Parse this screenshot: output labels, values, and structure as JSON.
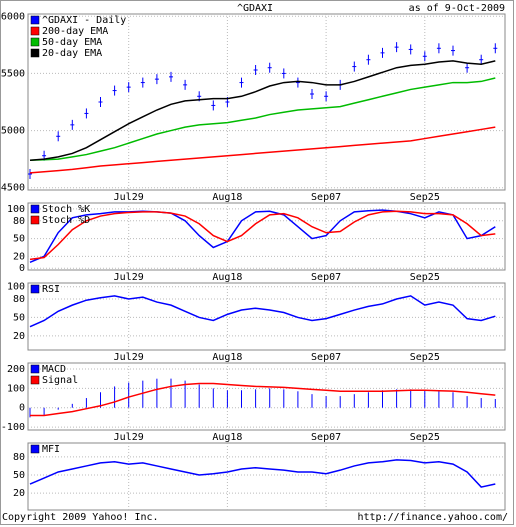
{
  "title": "^GDAXI",
  "as_of": "as of  9-Oct-2009",
  "footer_left": "Copyright 2009 Yahoo! Inc.",
  "footer_right": "http://finance.yahoo.com/",
  "chart_data": [
    {
      "type": "line",
      "categories": [
        null,
        null,
        null,
        null,
        null,
        null,
        null,
        "Jul29",
        null,
        null,
        null,
        null,
        null,
        null,
        "Aug18",
        null,
        null,
        null,
        null,
        null,
        null,
        "Sep07",
        null,
        null,
        null,
        null,
        null,
        null,
        "Sep25",
        null,
        null,
        null,
        null,
        null
      ],
      "ylim": [
        4480,
        6020
      ],
      "yticks": [
        4500,
        5000,
        5500,
        6000
      ],
      "grid": true,
      "series": [
        {
          "name": "^GDAXI - Daily",
          "color": "#0000ff",
          "style": "marker",
          "values": [
            4620,
            4780,
            4950,
            5050,
            5150,
            5250,
            5350,
            5380,
            5420,
            5450,
            5470,
            5400,
            5300,
            5220,
            5250,
            5420,
            5530,
            5550,
            5500,
            5420,
            5320,
            5300,
            5400,
            5560,
            5620,
            5680,
            5730,
            5710,
            5650,
            5720,
            5700,
            5550,
            5620,
            5720
          ]
        },
        {
          "name": "200-day EMA",
          "color": "#ff0000",
          "style": "line",
          "values": [
            4630,
            4640,
            4650,
            4660,
            4675,
            4690,
            4700,
            4710,
            4720,
            4730,
            4740,
            4750,
            4760,
            4770,
            4780,
            4790,
            4800,
            4810,
            4820,
            4830,
            4840,
            4850,
            4860,
            4870,
            4880,
            4890,
            4900,
            4910,
            4930,
            4950,
            4970,
            4990,
            5010,
            5030
          ]
        },
        {
          "name": "50-day EMA",
          "color": "#00bb00",
          "style": "line",
          "values": [
            4740,
            4745,
            4750,
            4770,
            4790,
            4820,
            4850,
            4890,
            4930,
            4970,
            5000,
            5030,
            5050,
            5060,
            5070,
            5090,
            5110,
            5140,
            5160,
            5180,
            5190,
            5200,
            5210,
            5240,
            5270,
            5300,
            5330,
            5360,
            5380,
            5400,
            5420,
            5420,
            5430,
            5460
          ]
        },
        {
          "name": "20-day EMA",
          "color": "#000000",
          "style": "line",
          "values": [
            4740,
            4750,
            4770,
            4800,
            4850,
            4920,
            4990,
            5060,
            5120,
            5180,
            5230,
            5260,
            5270,
            5280,
            5280,
            5300,
            5340,
            5390,
            5420,
            5430,
            5420,
            5400,
            5400,
            5430,
            5470,
            5510,
            5550,
            5570,
            5580,
            5600,
            5610,
            5590,
            5580,
            5610
          ]
        }
      ]
    },
    {
      "type": "line",
      "categories": [
        null,
        null,
        null,
        null,
        null,
        null,
        null,
        "Jul29",
        null,
        null,
        null,
        null,
        null,
        null,
        "Aug18",
        null,
        null,
        null,
        null,
        null,
        null,
        "Sep07",
        null,
        null,
        null,
        null,
        null,
        null,
        "Sep25",
        null,
        null,
        null,
        null,
        null
      ],
      "ylim": [
        -3,
        110
      ],
      "yticks": [
        0,
        20,
        50,
        80,
        100
      ],
      "grid": true,
      "series": [
        {
          "name": "Stoch %K",
          "color": "#0000ff",
          "style": "line",
          "values": [
            10,
            20,
            60,
            85,
            90,
            92,
            95,
            95,
            96,
            95,
            93,
            80,
            55,
            35,
            45,
            80,
            95,
            96,
            90,
            70,
            50,
            55,
            80,
            95,
            97,
            98,
            96,
            92,
            85,
            95,
            90,
            50,
            55,
            70
          ]
        },
        {
          "name": "Stoch %D",
          "color": "#ff0000",
          "style": "line",
          "values": [
            15,
            18,
            40,
            65,
            80,
            88,
            92,
            94,
            95,
            95,
            93,
            88,
            75,
            55,
            45,
            55,
            75,
            90,
            92,
            85,
            70,
            60,
            62,
            78,
            90,
            95,
            96,
            95,
            92,
            92,
            90,
            75,
            55,
            58
          ]
        }
      ]
    },
    {
      "type": "line",
      "categories": [
        null,
        null,
        null,
        null,
        null,
        null,
        null,
        "Jul29",
        null,
        null,
        null,
        null,
        null,
        null,
        "Aug18",
        null,
        null,
        null,
        null,
        null,
        null,
        "Sep07",
        null,
        null,
        null,
        null,
        null,
        null,
        "Sep25",
        null,
        null,
        null,
        null,
        null
      ],
      "ylim": [
        -3,
        106
      ],
      "yticks": [
        20,
        50,
        80,
        100
      ],
      "grid": true,
      "series": [
        {
          "name": "RSI",
          "color": "#0000ff",
          "style": "line",
          "values": [
            35,
            45,
            60,
            70,
            78,
            82,
            85,
            80,
            83,
            75,
            70,
            60,
            50,
            45,
            55,
            62,
            65,
            62,
            58,
            50,
            45,
            48,
            55,
            62,
            68,
            72,
            80,
            85,
            70,
            75,
            70,
            48,
            45,
            52
          ]
        }
      ]
    },
    {
      "type": "line",
      "categories": [
        null,
        null,
        null,
        null,
        null,
        null,
        null,
        "Jul29",
        null,
        null,
        null,
        null,
        null,
        null,
        "Aug18",
        null,
        null,
        null,
        null,
        null,
        null,
        "Sep07",
        null,
        null,
        null,
        null,
        null,
        null,
        "Sep25",
        null,
        null,
        null,
        null,
        null
      ],
      "ylim": [
        -115,
        231
      ],
      "yticks": [
        -100,
        0,
        100,
        200
      ],
      "grid": true,
      "series": [
        {
          "name": "MACD",
          "color": "#0000ff",
          "style": "bar",
          "values": [
            -50,
            -40,
            -10,
            20,
            50,
            80,
            110,
            130,
            140,
            150,
            150,
            140,
            120,
            100,
            90,
            90,
            95,
            100,
            95,
            85,
            70,
            60,
            60,
            70,
            80,
            90,
            95,
            95,
            90,
            85,
            80,
            60,
            50,
            45
          ]
        },
        {
          "name": "Signal",
          "color": "#ff0000",
          "style": "line",
          "values": [
            -40,
            -40,
            -30,
            -20,
            -5,
            10,
            30,
            55,
            75,
            95,
            110,
            120,
            125,
            125,
            120,
            115,
            110,
            108,
            105,
            100,
            95,
            90,
            85,
            85,
            85,
            85,
            88,
            90,
            90,
            88,
            86,
            80,
            72,
            65
          ]
        }
      ]
    },
    {
      "type": "line",
      "ylim": [
        -8,
        103
      ],
      "yticks": [
        20,
        50,
        80
      ],
      "grid": true,
      "series": [
        {
          "name": "MFI",
          "color": "#0000ff",
          "style": "line",
          "values": [
            35,
            45,
            55,
            60,
            65,
            70,
            72,
            68,
            70,
            65,
            60,
            55,
            50,
            52,
            55,
            60,
            62,
            60,
            58,
            55,
            55,
            52,
            58,
            65,
            70,
            72,
            75,
            74,
            70,
            72,
            68,
            55,
            30,
            35
          ]
        }
      ]
    }
  ]
}
